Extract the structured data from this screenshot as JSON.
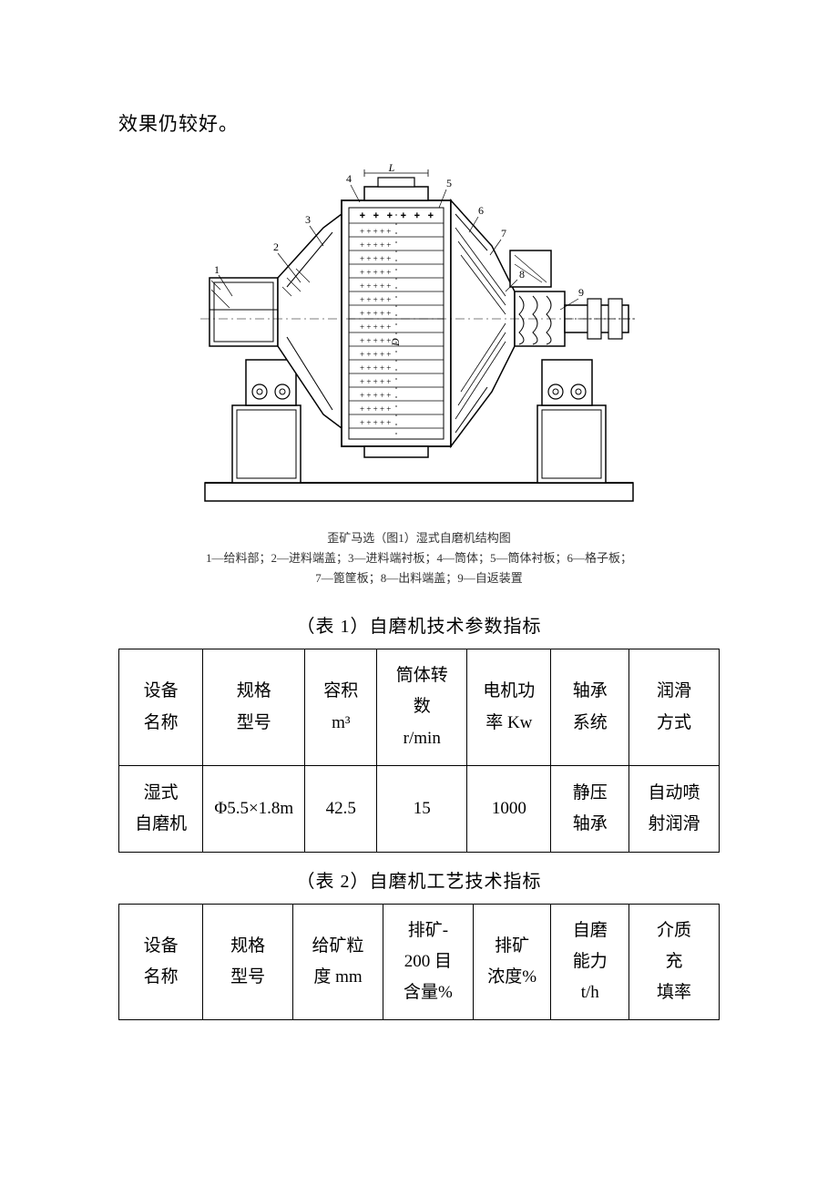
{
  "intro": "效果仍较好。",
  "figure": {
    "caption_line1": "歪矿马选（图1）湿式自磨机结构图",
    "caption_line2": "1—给料部；2—进料端盖；3—进料端衬板；4—筒体；5—筒体衬板；6—格子板；",
    "caption_line3": "7—篦筐板；8—出料端盖；9—自返装置",
    "labels": [
      "1",
      "2",
      "3",
      "4",
      "5",
      "6",
      "7",
      "8",
      "9"
    ],
    "dim_L": "L",
    "dim_D": "D"
  },
  "table1": {
    "title": "（表 1）自磨机技术参数指标",
    "headers": [
      "设备\n名称",
      "规格\n型号",
      "容积\nm³",
      "筒体转\n数\nr/min",
      "电机功\n率 Kw",
      "轴承\n系统",
      "润滑\n方式"
    ],
    "rows": [
      [
        "湿式\n自磨机",
        "Φ5.5×1.8m",
        "42.5",
        "15",
        "1000",
        "静压\n轴承",
        "自动喷\n射润滑"
      ]
    ],
    "col_widths": [
      "14%",
      "17%",
      "12%",
      "15%",
      "14%",
      "13%",
      "15%"
    ]
  },
  "table2": {
    "title": "（表 2）自磨机工艺技术指标",
    "headers": [
      "设备\n名称",
      "规格\n型号",
      "给矿粒\n度 mm",
      "排矿-\n200 目\n含量%",
      "排矿\n浓度%",
      "自磨\n能力\nt/h",
      "介质\n充\n填率"
    ],
    "col_widths": [
      "14%",
      "15%",
      "15%",
      "15%",
      "13%",
      "13%",
      "15%"
    ]
  },
  "colors": {
    "text": "#000000",
    "border": "#000000",
    "bg": "#ffffff",
    "figure_stroke": "#000000"
  }
}
